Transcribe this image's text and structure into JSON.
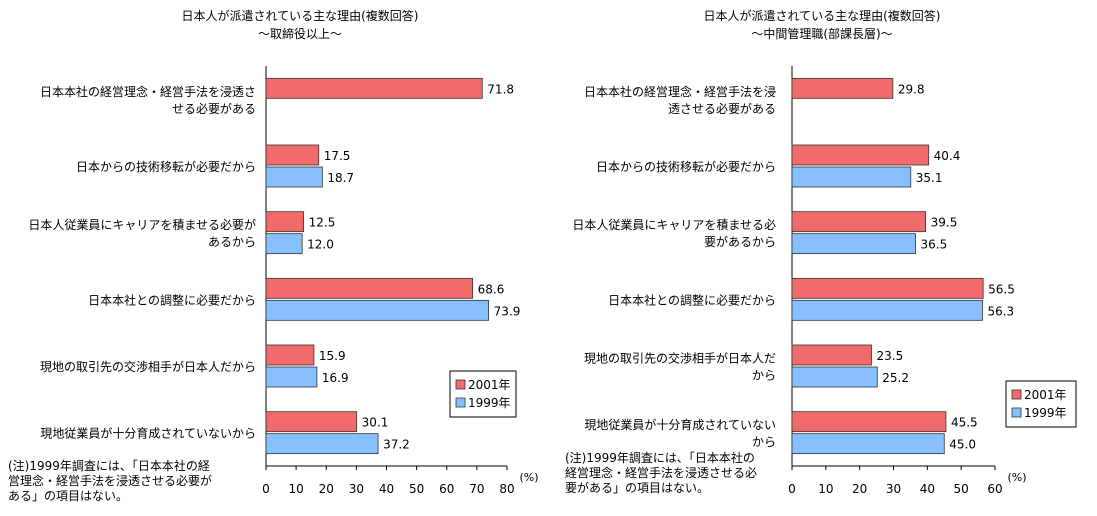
{
  "chart_data": [
    {
      "type": "bar",
      "orientation": "horizontal",
      "title": "日本人が派遣されている主な理由(複数回答)",
      "subtitle": "～取締役以上～",
      "categories": [
        [
          "日本本社の経営理念・経営手法を浸透さ",
          "せる必要がある"
        ],
        [
          "日本からの技術移転が必要だから"
        ],
        [
          "日本人従業員にキャリアを積ませる必要が",
          "あるから"
        ],
        [
          "日本本社との調整に必要だから"
        ],
        [
          "現地の取引先の交渉相手が日本人だから"
        ],
        [
          "現地従業員が十分育成されていないから"
        ]
      ],
      "series": [
        {
          "name": "2001年",
          "color": "#f26b6b",
          "values": [
            71.8,
            17.5,
            12.5,
            68.6,
            15.9,
            30.1
          ]
        },
        {
          "name": "1999年",
          "color": "#88bfff",
          "values": [
            null,
            18.7,
            12.0,
            73.9,
            16.9,
            37.2
          ]
        }
      ],
      "xlim": [
        0,
        80
      ],
      "ticks": [
        0,
        10,
        20,
        30,
        40,
        50,
        60,
        70,
        80
      ],
      "unit": "(%)",
      "legend": "bottom-right",
      "note": "(注)1999年調査には、「日本本社の経\n営理念・経営手法を浸透させる必要が\nある」の項目はない。"
    },
    {
      "type": "bar",
      "orientation": "horizontal",
      "title": "日本人が派遣されている主な理由(複数回答)",
      "subtitle": "～中間管理職(部課長層)～",
      "categories": [
        [
          "日本本社の経営理念・経営手法を浸",
          "透させる必要がある"
        ],
        [
          "日本からの技術移転が必要だから"
        ],
        [
          "日本人従業員にキャリアを積ませる必",
          "要があるから"
        ],
        [
          "日本本社との調整に必要だから"
        ],
        [
          "現地の取引先の交渉相手が日本人だ",
          "から"
        ],
        [
          "現地従業員が十分育成されていない",
          "から"
        ]
      ],
      "series": [
        {
          "name": "2001年",
          "color": "#f26b6b",
          "values": [
            29.8,
            40.4,
            39.5,
            56.5,
            23.5,
            45.5
          ]
        },
        {
          "name": "1999年",
          "color": "#88bfff",
          "values": [
            null,
            35.1,
            36.5,
            56.3,
            25.2,
            45.0
          ]
        }
      ],
      "xlim": [
        0,
        60
      ],
      "ticks": [
        0,
        10,
        20,
        30,
        40,
        50,
        60
      ],
      "unit": "(%)",
      "legend": "bottom-right",
      "note": "(注)1999年調査には、「日本本社の\n経営理念・経営手法を浸透させる必\n要がある」の項目はない。"
    }
  ]
}
